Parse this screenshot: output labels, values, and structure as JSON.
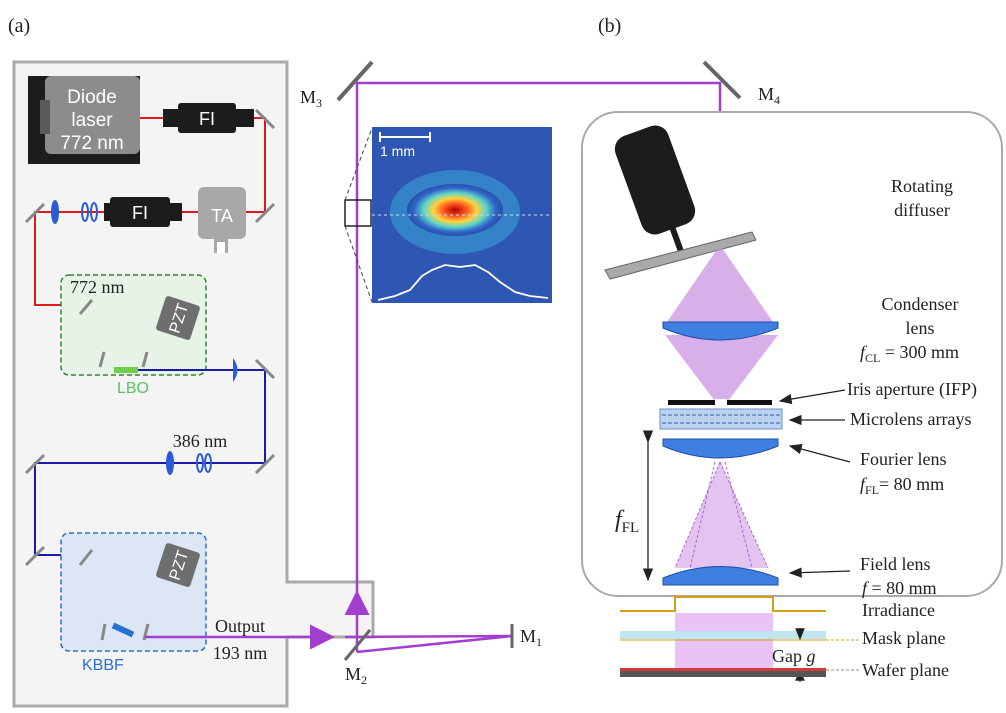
{
  "panel_labels": {
    "a": "(a)",
    "b": "(b)"
  },
  "laser": {
    "line1": "Diode",
    "line2": "laser",
    "line3": "772 nm"
  },
  "components": {
    "fi1": "FI",
    "fi2": "FI",
    "ta": "TA",
    "pzt1": "PZT",
    "pzt2": "PZT",
    "lbo": "LBO",
    "kbbf": "KBBF"
  },
  "wavelengths": {
    "red": "772 nm",
    "blue": "386 nm",
    "output1": "Output",
    "output2": "193 nm"
  },
  "mirrors": {
    "m1": "M",
    "m1_sub": "1",
    "m2": "M",
    "m2_sub": "2",
    "m3": "M",
    "m3_sub": "3",
    "m4": "M",
    "m4_sub": "4"
  },
  "inset": {
    "scale": "1 mm"
  },
  "optics": {
    "diffuser1": "Rotating",
    "diffuser2": "diffuser",
    "condenser1": "Condenser",
    "condenser2": "lens",
    "condenser_f": "f",
    "condenser_sub": "CL",
    "condenser_val": " = 300 mm",
    "iris": "Iris aperture (IFP)",
    "mla": "Microlens arrays",
    "fourier1": "Fourier lens",
    "fourier_f": "f",
    "fourier_sub": "FL",
    "fourier_val": "= 80 mm",
    "ffl": "f",
    "ffl_sub": "FL",
    "field1": "Field lens",
    "field_f": "f",
    "field_val": " = 80 mm",
    "irradiance": "Irradiance",
    "mask": "Mask plane",
    "gap": "Gap ",
    "gap_g": "g",
    "wafer": "Wafer plane"
  },
  "colors": {
    "red_beam": "#e01818",
    "blue_beam": "#1a1aa6",
    "uv_beam": "#a33fcf",
    "lbo_box": "#2d8a2d",
    "kbbf_box": "#2a6fd6",
    "irradiance": "#d4a017"
  }
}
